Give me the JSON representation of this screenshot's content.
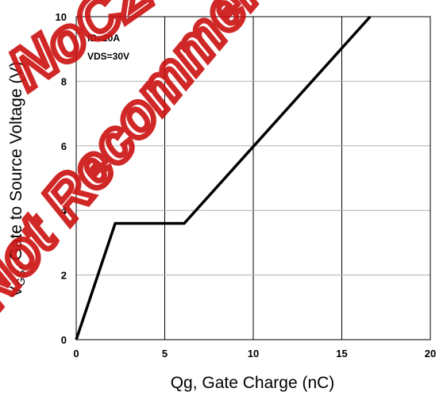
{
  "chart_data": {
    "type": "line",
    "xlabel": "Qg, Gate Charge (nC)",
    "ylabel_main": "V",
    "ylabel_sub": "GS",
    "ylabel_rest": ", Gate to Source Voltage (V)",
    "xlim": [
      0,
      20
    ],
    "ylim": [
      0,
      10
    ],
    "xticks": [
      "0",
      "5",
      "10",
      "15",
      "20"
    ],
    "yticks": [
      "0",
      "2",
      "4",
      "6",
      "8",
      "10"
    ],
    "grid": true,
    "annotations": [
      "ID=20A",
      "VDS=30V"
    ],
    "series": [
      {
        "x": [
          0,
          2.2,
          6.1,
          16.6
        ],
        "y": [
          0,
          3.6,
          3.6,
          10
        ]
      }
    ]
  },
  "watermark": {
    "lines": [
      "Not Recommended",
      "NoCZ"
    ],
    "color": "#cc1010"
  }
}
